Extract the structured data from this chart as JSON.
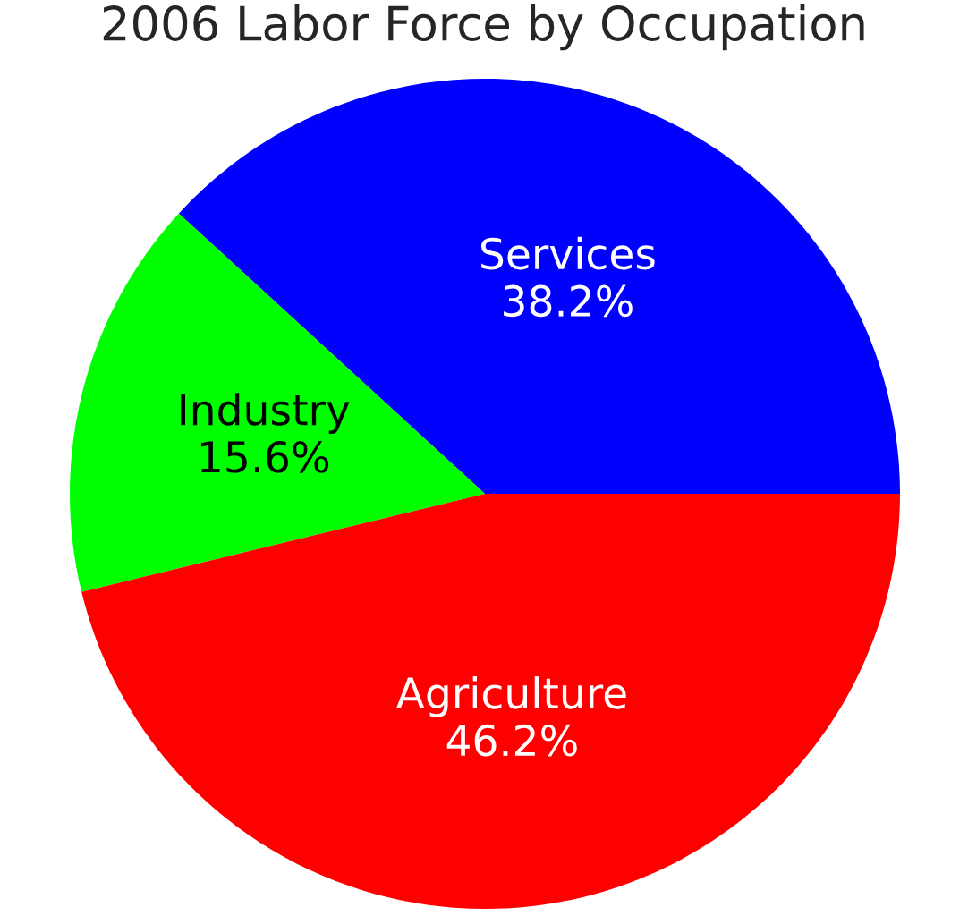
{
  "chart_data": {
    "type": "pie",
    "title": "2006 Labor Force by Occupation",
    "categories": [
      "Services",
      "Industry",
      "Agriculture"
    ],
    "values": [
      38.2,
      15.6,
      46.2
    ],
    "value_labels": [
      "38.2%",
      "15.6%",
      "46.2%"
    ],
    "colors": [
      "#0000ff",
      "#00ff00",
      "#ff0000"
    ]
  }
}
